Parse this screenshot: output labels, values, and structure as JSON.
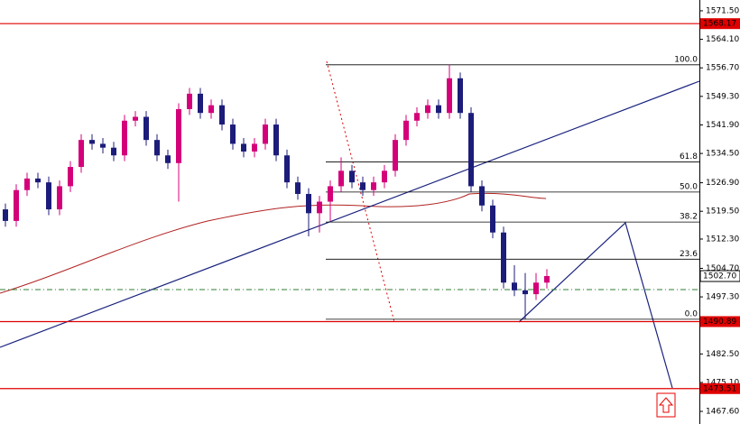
{
  "chart_data": {
    "type": "candlestick",
    "up_color": "#d4007a",
    "down_color": "#1c1c7a",
    "open": [
      1520,
      1517,
      1525,
      1528,
      1527,
      1520,
      1526,
      1531,
      1538,
      1537,
      1536,
      1534,
      1543,
      1544,
      1538,
      1534,
      1532,
      1546,
      1550,
      1545,
      1547,
      1542,
      1537,
      1535,
      1537,
      1542,
      1534,
      1527,
      1524,
      1519,
      1522,
      1526,
      1530,
      1527,
      1525,
      1527,
      1530,
      1538,
      1543,
      1545,
      1547,
      1545,
      1554,
      1545,
      1526,
      1521,
      1514,
      1501,
      1499,
      1498,
      1501
    ],
    "high": [
      1521.5,
      1526.5,
      1529.5,
      1529.5,
      1528.5,
      1527.5,
      1532.5,
      1539.5,
      1539.5,
      1538.5,
      1537.5,
      1544.5,
      1545.5,
      1545.5,
      1539.5,
      1535.5,
      1547.5,
      1551.5,
      1551.5,
      1548.5,
      1548.5,
      1543.5,
      1538.5,
      1538.5,
      1543.5,
      1543.5,
      1535.5,
      1528.5,
      1525.5,
      1523.5,
      1527.5,
      1533.5,
      1531.5,
      1528.5,
      1528.5,
      1531.5,
      1539.5,
      1544.5,
      1546.5,
      1548.5,
      1548.5,
      1557.5,
      1555.5,
      1546.5,
      1527.5,
      1522.5,
      1515.5,
      1505.5,
      1503.5,
      1503.5,
      1504.5
    ],
    "low": [
      1515.5,
      1515.5,
      1523.5,
      1525.5,
      1518.5,
      1518.5,
      1524.5,
      1529.5,
      1535.5,
      1534.5,
      1532.5,
      1532.5,
      1541.5,
      1536.5,
      1532.5,
      1530.5,
      1522,
      1544.5,
      1543.5,
      1543.5,
      1540.5,
      1535.5,
      1533.5,
      1533.5,
      1535.5,
      1532.5,
      1525.5,
      1522.5,
      1513,
      1514,
      1517,
      1524.5,
      1525.5,
      1523.5,
      1523.5,
      1525.5,
      1528.5,
      1536.5,
      1541.5,
      1543.5,
      1543.5,
      1543.5,
      1543.5,
      1524.5,
      1519.5,
      1512.5,
      1499.5,
      1497.5,
      1491.5,
      1496.5,
      1499.5
    ],
    "close": [
      1517,
      1525,
      1528,
      1527,
      1520,
      1526,
      1531,
      1538,
      1537,
      1536,
      1534,
      1543,
      1544,
      1538,
      1534,
      1532,
      1546,
      1550,
      1545,
      1547,
      1542,
      1537,
      1535,
      1537,
      1542,
      1534,
      1527,
      1524,
      1519,
      1522,
      1526,
      1530,
      1527,
      1525,
      1527,
      1530,
      1538,
      1543,
      1545,
      1547,
      1545,
      1554,
      1545,
      1526,
      1521,
      1514,
      1501,
      1499,
      1498,
      1501,
      1502.7
    ],
    "ylim": [
      1465.5,
      1574.3
    ],
    "yticks": [
      {
        "value": 1571.5,
        "label": "1571.50"
      },
      {
        "value": 1564.1,
        "label": "1564.10"
      },
      {
        "value": 1556.7,
        "label": "1556.70"
      },
      {
        "value": 1549.3,
        "label": "1549.30"
      },
      {
        "value": 1541.9,
        "label": "1541.90"
      },
      {
        "value": 1534.5,
        "label": "1534.50"
      },
      {
        "value": 1526.9,
        "label": "1526.90"
      },
      {
        "value": 1519.5,
        "label": "1519.50"
      },
      {
        "value": 1512.3,
        "label": "1512.30"
      },
      {
        "value": 1504.7,
        "label": "1504.70"
      },
      {
        "value": 1497.3,
        "label": "1497.30"
      },
      {
        "value": 1482.5,
        "label": "1482.50"
      },
      {
        "value": 1475.1,
        "label": "1475.10"
      },
      {
        "value": 1467.6,
        "label": "1467.60"
      }
    ],
    "hlines": [
      1568.17,
      1490.89,
      1473.51
    ],
    "hline_color": "#e00000",
    "price_line": {
      "value": 1502.7,
      "label": "1502.70"
    },
    "dashed_level": 1499.2,
    "fibonacci": {
      "high": 1557.5,
      "low": 1491.5,
      "levels": [
        {
          "value": 100,
          "label": "100.0"
        },
        {
          "value": 61.8,
          "label": "61.8"
        },
        {
          "value": 50,
          "label": "50.0"
        },
        {
          "value": 38.2,
          "label": "38.2"
        },
        {
          "value": 23.6,
          "label": "23.6"
        },
        {
          "value": 0,
          "label": "0.0"
        }
      ]
    }
  }
}
